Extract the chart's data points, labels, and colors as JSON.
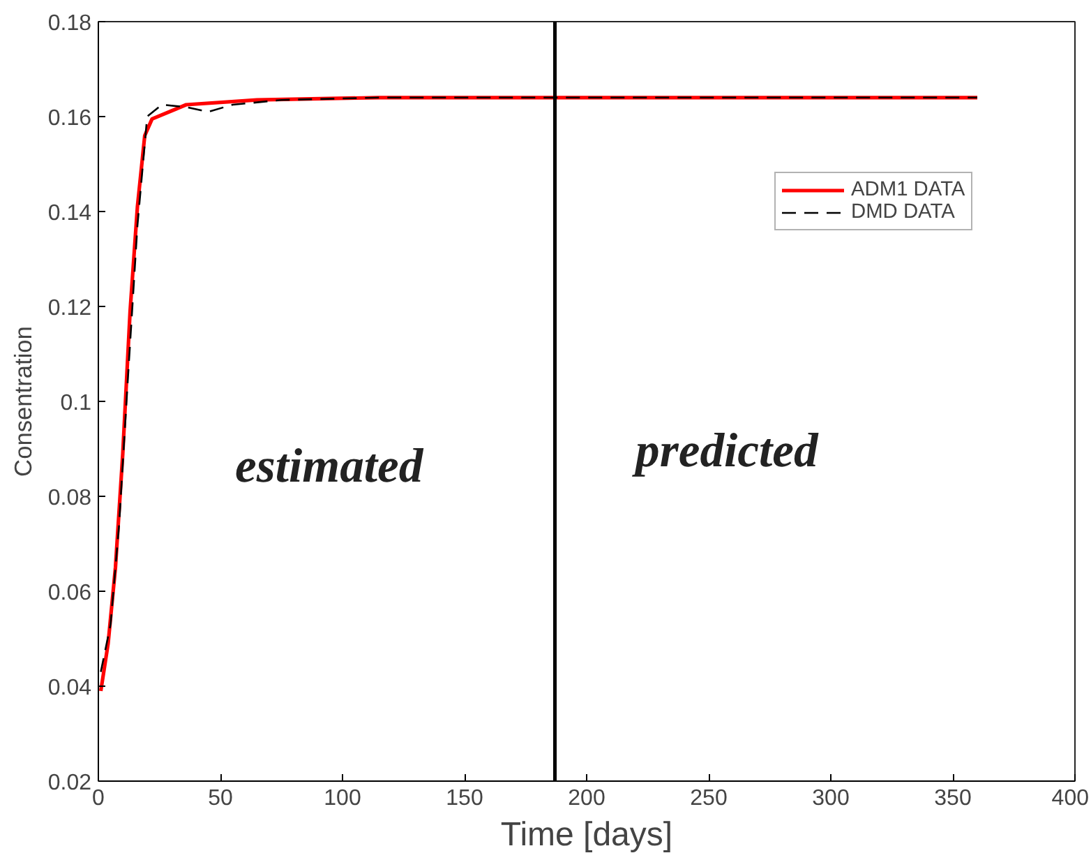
{
  "chart_data": {
    "type": "line",
    "xlabel": "Time [days]",
    "ylabel": "Consentration",
    "xlim": [
      0,
      400
    ],
    "ylim": [
      0.02,
      0.18
    ],
    "xticks": [
      0,
      50,
      100,
      150,
      200,
      250,
      300,
      350,
      400
    ],
    "yticks": [
      0.02,
      0.04,
      0.06,
      0.08,
      {
        "value": 0.1,
        "label": "0.1"
      },
      0.12,
      0.14,
      0.16,
      0.18
    ],
    "series": [
      {
        "name": "ADM1 DATA",
        "color": "#ff0000",
        "line_style": "solid",
        "x": [
          1,
          4,
          7,
          10,
          13,
          16,
          19,
          22,
          36,
          65,
          115,
          200,
          300,
          360
        ],
        "values": [
          0.039,
          0.049,
          0.065,
          0.089,
          0.119,
          0.141,
          0.156,
          0.1595,
          0.1625,
          0.1635,
          0.164,
          0.164,
          0.164,
          0.164
        ]
      },
      {
        "name": "DMD DATA",
        "color": "#000000",
        "line_style": "dashed",
        "x": [
          1,
          5,
          8.5,
          12,
          16,
          20,
          26,
          36,
          45,
          55,
          75,
          115,
          200,
          300,
          360
        ],
        "values": [
          0.043,
          0.053,
          0.074,
          0.104,
          0.137,
          0.16,
          0.1625,
          0.162,
          0.161,
          0.1625,
          0.1635,
          0.164,
          0.164,
          0.164,
          0.164
        ]
      }
    ],
    "ref_lines": [
      {
        "axis": "x",
        "value": 187,
        "color": "#000000"
      }
    ],
    "annotations": [
      "estimated",
      "predicted"
    ],
    "legend": "top right",
    "grid": false
  }
}
